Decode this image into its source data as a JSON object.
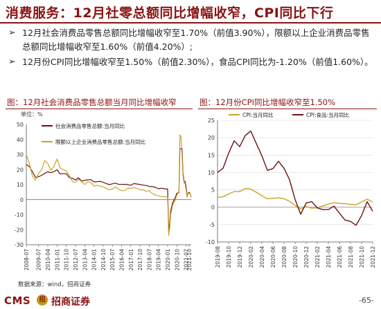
{
  "slide": {
    "title": "消费服务：12月社零总额同比增幅收窄，CPI同比下行",
    "bullets": [
      "12月社会消费品零售总额同比增幅收窄至1.70%（前值3.90%），限额以上企业消费品零售总额同比增幅收窄至1.60%（前值4.20%）;",
      "12月份CPI同比增幅收窄至1.50%（前值2.30%），食品CPI同比为-1.20%（前值1.60%）。"
    ],
    "bullet_icon": "arrow-right-icon",
    "source": "数据来源：wind，招商证券",
    "footer_cms": "CMS",
    "footer_logo_text": "招",
    "footer_brand": "招商证券",
    "page_number": "-65-"
  },
  "chart_data": [
    {
      "type": "line",
      "title": "图：12月社会消费品零售总额当月同比增幅收窄",
      "unit_label": "单位：%",
      "ylim": [
        -30,
        50
      ],
      "yticks": [
        -30,
        -20,
        -10,
        0,
        10,
        20,
        30,
        40,
        50
      ],
      "xticks": [
        "2008-07",
        "2009-07",
        "2010-04",
        "2011-01",
        "2011-10",
        "2012-07",
        "2013-04",
        "2014-01",
        "2014-10",
        "2015-07",
        "2016-04",
        "2017-01",
        "2017-10",
        "2018-07",
        "2019-04",
        "2020-01",
        "2020-10",
        "2021-07",
        "2021-10"
      ],
      "grid": false,
      "legend": "top-left",
      "series": [
        {
          "name": "社会消费品零售总额:当月同比",
          "color": "#6b1010",
          "x": [
            "2008-07",
            "2008-10",
            "2009-01",
            "2009-04",
            "2009-07",
            "2009-10",
            "2010-01",
            "2010-04",
            "2010-07",
            "2010-10",
            "2011-01",
            "2011-04",
            "2011-07",
            "2011-10",
            "2012-01",
            "2012-04",
            "2012-07",
            "2012-10",
            "2013-01",
            "2013-04",
            "2013-07",
            "2013-10",
            "2014-01",
            "2014-04",
            "2014-07",
            "2014-10",
            "2015-01",
            "2015-04",
            "2015-07",
            "2015-10",
            "2016-01",
            "2016-04",
            "2016-07",
            "2016-10",
            "2017-01",
            "2017-04",
            "2017-07",
            "2017-10",
            "2018-01",
            "2018-04",
            "2018-07",
            "2018-10",
            "2019-01",
            "2019-04",
            "2019-07",
            "2019-10",
            "2020-01",
            "2020-02",
            "2020-03",
            "2020-04",
            "2020-06",
            "2020-08",
            "2020-10",
            "2020-12",
            "2021-01",
            "2021-02",
            "2021-03",
            "2021-04",
            "2021-05",
            "2021-06",
            "2021-07",
            "2021-08",
            "2021-09",
            "2021-10",
            "2021-11",
            "2021-12"
          ],
          "values": [
            23.3,
            22.0,
            18.5,
            14.8,
            15.2,
            16.2,
            17.5,
            18.5,
            17.9,
            18.6,
            19.9,
            17.1,
            17.2,
            17.2,
            14.7,
            14.1,
            13.1,
            14.5,
            12.3,
            12.8,
            13.2,
            13.3,
            11.8,
            11.9,
            12.2,
            11.5,
            10.7,
            10.0,
            10.5,
            11.0,
            10.2,
            10.1,
            10.2,
            10.0,
            9.5,
            10.7,
            10.4,
            10.0,
            9.7,
            9.4,
            8.8,
            8.6,
            8.2,
            7.2,
            7.6,
            7.2,
            7.0,
            -20.5,
            -15.8,
            -7.5,
            -1.8,
            0.5,
            4.3,
            4.6,
            33.8,
            33.8,
            34.2,
            17.7,
            12.4,
            12.1,
            8.5,
            2.5,
            4.4,
            4.9,
            3.9,
            1.7
          ]
        },
        {
          "name": "限额以上企业消费品零售总额:当月同比",
          "color": "#c9a227",
          "x": [
            "2008-07",
            "2008-10",
            "2009-01",
            "2009-04",
            "2009-07",
            "2009-10",
            "2010-01",
            "2010-04",
            "2010-07",
            "2010-10",
            "2011-01",
            "2011-04",
            "2011-07",
            "2011-10",
            "2012-01",
            "2012-04",
            "2012-07",
            "2012-10",
            "2013-01",
            "2013-04",
            "2013-07",
            "2013-10",
            "2014-01",
            "2014-04",
            "2014-07",
            "2014-10",
            "2015-01",
            "2015-04",
            "2015-07",
            "2015-10",
            "2016-01",
            "2016-04",
            "2016-07",
            "2016-10",
            "2017-01",
            "2017-04",
            "2017-07",
            "2017-10",
            "2018-01",
            "2018-04",
            "2018-07",
            "2018-10",
            "2019-01",
            "2019-04",
            "2019-07",
            "2019-10",
            "2020-01",
            "2020-02",
            "2020-03",
            "2020-04",
            "2020-06",
            "2020-08",
            "2020-10",
            "2020-12",
            "2021-01",
            "2021-02",
            "2021-03",
            "2021-04",
            "2021-05",
            "2021-06",
            "2021-07",
            "2021-08",
            "2021-09",
            "2021-10",
            "2021-11",
            "2021-12"
          ],
          "values": [
            30.0,
            24.0,
            15.5,
            13.0,
            17.5,
            20.0,
            26.0,
            24.0,
            19.5,
            22.0,
            27.0,
            21.0,
            20.0,
            19.0,
            16.0,
            12.0,
            11.5,
            13.5,
            12.0,
            10.0,
            12.0,
            11.5,
            9.0,
            9.5,
            9.0,
            8.5,
            7.5,
            6.5,
            7.0,
            8.5,
            7.0,
            6.0,
            6.0,
            7.5,
            7.5,
            8.0,
            7.5,
            6.5,
            6.5,
            5.5,
            6.0,
            4.0,
            3.0,
            2.5,
            2.0,
            2.0,
            1.5,
            -24.0,
            -18.5,
            -10.0,
            -3.5,
            -1.0,
            3.0,
            5.5,
            43.0,
            42.0,
            30.0,
            16.0,
            11.0,
            10.5,
            6.5,
            1.5,
            4.5,
            4.0,
            4.2,
            1.6
          ]
        }
      ]
    },
    {
      "type": "line",
      "title": "图：12月份CPI同比增幅收窄至1.50%",
      "ylim": [
        -10,
        25
      ],
      "yticks": [
        -10,
        -5,
        0,
        5,
        10,
        15,
        20,
        25
      ],
      "xticks": [
        "2019-08",
        "2019-10",
        "2019-12",
        "2020-02",
        "2020-04",
        "2020-06",
        "2020-08",
        "2020-10",
        "2020-12",
        "2021-02",
        "2021-04",
        "2021-06",
        "2021-08",
        "2021-10",
        "2021-12"
      ],
      "grid": true,
      "legend": "top",
      "series": [
        {
          "name": "CPI:当月同比",
          "color": "#c9a227",
          "x": [
            "2019-08",
            "2019-09",
            "2019-10",
            "2019-11",
            "2019-12",
            "2020-01",
            "2020-02",
            "2020-03",
            "2020-04",
            "2020-05",
            "2020-06",
            "2020-07",
            "2020-08",
            "2020-09",
            "2020-10",
            "2020-11",
            "2020-12",
            "2021-01",
            "2021-02",
            "2021-03",
            "2021-04",
            "2021-05",
            "2021-06",
            "2021-07",
            "2021-08",
            "2021-09",
            "2021-10",
            "2021-11",
            "2021-12"
          ],
          "values": [
            2.8,
            3.0,
            3.8,
            4.5,
            4.5,
            5.4,
            5.2,
            4.3,
            3.3,
            2.4,
            2.5,
            2.7,
            2.4,
            1.7,
            0.5,
            -0.5,
            0.2,
            -0.3,
            -0.2,
            0.4,
            0.9,
            1.3,
            1.1,
            1.0,
            0.8,
            0.7,
            1.5,
            2.3,
            1.5
          ]
        },
        {
          "name": "CPI:食品:当月同比",
          "color": "#6b1010",
          "x": [
            "2019-08",
            "2019-09",
            "2019-10",
            "2019-11",
            "2019-12",
            "2020-01",
            "2020-02",
            "2020-03",
            "2020-04",
            "2020-05",
            "2020-06",
            "2020-07",
            "2020-08",
            "2020-09",
            "2020-10",
            "2020-11",
            "2020-12",
            "2021-01",
            "2021-02",
            "2021-03",
            "2021-04",
            "2021-05",
            "2021-06",
            "2021-07",
            "2021-08",
            "2021-09",
            "2021-10",
            "2021-11",
            "2021-12"
          ],
          "values": [
            10.0,
            11.2,
            15.5,
            19.1,
            17.4,
            20.6,
            21.9,
            18.3,
            14.8,
            10.6,
            11.1,
            13.2,
            11.2,
            7.9,
            2.2,
            -2.0,
            1.2,
            1.6,
            -0.2,
            -0.7,
            -0.7,
            0.3,
            -1.7,
            -3.7,
            -4.1,
            -5.2,
            -2.4,
            1.6,
            -1.2
          ]
        }
      ]
    }
  ]
}
